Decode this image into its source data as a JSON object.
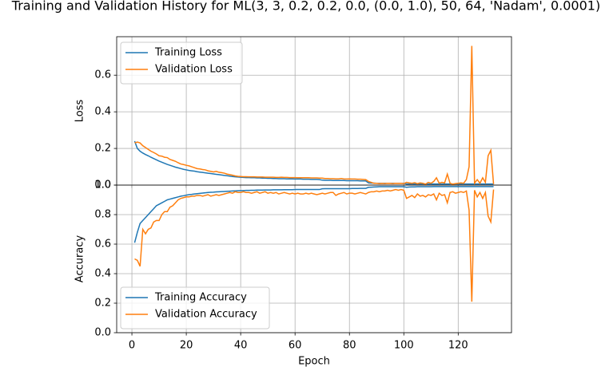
{
  "title": "Training and Validation History for ML(3, 3, 0.2, 0.2, 0.0, (0.0, 1.0), 50, 64, 'Nadam', 0.0001)",
  "chart_data": [
    {
      "type": "line",
      "ylabel": "Loss",
      "grid": true,
      "legend": "upper left",
      "x": [
        1,
        2,
        3,
        4,
        5,
        6,
        7,
        8,
        9,
        10,
        11,
        12,
        13,
        14,
        15,
        16,
        17,
        18,
        19,
        20,
        21,
        22,
        23,
        24,
        25,
        26,
        27,
        28,
        29,
        30,
        31,
        32,
        33,
        34,
        35,
        36,
        37,
        38,
        39,
        40,
        41,
        42,
        43,
        44,
        45,
        46,
        47,
        48,
        49,
        50,
        51,
        52,
        53,
        54,
        55,
        56,
        57,
        58,
        59,
        60,
        61,
        62,
        63,
        64,
        65,
        66,
        67,
        68,
        69,
        70,
        71,
        72,
        73,
        74,
        75,
        76,
        77,
        78,
        79,
        80,
        81,
        82,
        83,
        84,
        85,
        86,
        87,
        88,
        89,
        90,
        91,
        92,
        93,
        94,
        95,
        96,
        97,
        98,
        99,
        100,
        101,
        102,
        103,
        104,
        105,
        106,
        107,
        108,
        109,
        110,
        111,
        112,
        113,
        114,
        115,
        116,
        117,
        118,
        119,
        120,
        121,
        122,
        123,
        124,
        125,
        126,
        127,
        128,
        129,
        130,
        131,
        132,
        133
      ],
      "xlim": [
        -5.6,
        139.6
      ],
      "xticks": [
        0,
        20,
        40,
        60,
        80,
        100,
        120
      ],
      "ylim": [
        0,
        0.81
      ],
      "yticks": [
        {
          "value": 0,
          "label": "0.0"
        },
        0.2,
        0.4,
        0.6
      ],
      "series": [
        {
          "name": "Training Loss",
          "color": "#1f77b4",
          "values": [
            0.24,
            0.2,
            0.185,
            0.175,
            0.167,
            0.16,
            0.152,
            0.145,
            0.138,
            0.131,
            0.125,
            0.119,
            0.113,
            0.108,
            0.103,
            0.098,
            0.094,
            0.09,
            0.086,
            0.083,
            0.08,
            0.078,
            0.076,
            0.073,
            0.071,
            0.069,
            0.067,
            0.065,
            0.063,
            0.061,
            0.059,
            0.057,
            0.055,
            0.053,
            0.051,
            0.049,
            0.047,
            0.045,
            0.044,
            0.043,
            0.042,
            0.041,
            0.041,
            0.04,
            0.04,
            0.039,
            0.039,
            0.038,
            0.038,
            0.037,
            0.037,
            0.036,
            0.036,
            0.035,
            0.035,
            0.035,
            0.034,
            0.034,
            0.034,
            0.033,
            0.033,
            0.033,
            0.032,
            0.032,
            0.032,
            0.031,
            0.031,
            0.031,
            0.03,
            0.027,
            0.026,
            0.026,
            0.026,
            0.025,
            0.025,
            0.025,
            0.025,
            0.025,
            0.024,
            0.024,
            0.024,
            0.024,
            0.024,
            0.023,
            0.023,
            0.023,
            0.012,
            0.011,
            0.011,
            0.01,
            0.01,
            0.01,
            0.01,
            0.01,
            0.01,
            0.01,
            0.01,
            0.01,
            0.01,
            0.01,
            0.006,
            0.006,
            0.006,
            0.006,
            0.006,
            0.006,
            0.006,
            0.006,
            0.006,
            0.006,
            0.006,
            0.006,
            0.006,
            0.006,
            0.006,
            0.006,
            0.006,
            0.006,
            0.006,
            0.006,
            0.006,
            0.006,
            0.006,
            0.006,
            0.006,
            0.006,
            0.006,
            0.006,
            0.006,
            0.006,
            0.006,
            0.006,
            0.006
          ]
        },
        {
          "name": "Validation Loss",
          "color": "#ff7f0e",
          "values": [
            0.23,
            0.235,
            0.23,
            0.215,
            0.205,
            0.195,
            0.185,
            0.178,
            0.17,
            0.16,
            0.158,
            0.152,
            0.15,
            0.14,
            0.135,
            0.13,
            0.122,
            0.115,
            0.112,
            0.108,
            0.105,
            0.1,
            0.095,
            0.09,
            0.088,
            0.085,
            0.083,
            0.078,
            0.075,
            0.072,
            0.075,
            0.07,
            0.068,
            0.065,
            0.06,
            0.057,
            0.054,
            0.05,
            0.048,
            0.047,
            0.046,
            0.046,
            0.045,
            0.045,
            0.045,
            0.044,
            0.044,
            0.044,
            0.043,
            0.043,
            0.043,
            0.043,
            0.042,
            0.042,
            0.043,
            0.042,
            0.042,
            0.041,
            0.041,
            0.041,
            0.04,
            0.04,
            0.04,
            0.04,
            0.04,
            0.039,
            0.039,
            0.039,
            0.038,
            0.038,
            0.036,
            0.036,
            0.035,
            0.035,
            0.034,
            0.034,
            0.036,
            0.033,
            0.033,
            0.034,
            0.033,
            0.033,
            0.032,
            0.032,
            0.031,
            0.03,
            0.02,
            0.015,
            0.01,
            0.01,
            0.008,
            0.009,
            0.008,
            0.01,
            0.009,
            0.008,
            0.01,
            0.009,
            0.01,
            0.008,
            0.015,
            0.012,
            0.01,
            0.013,
            0.008,
            0.012,
            0.01,
            0.005,
            0.015,
            0.01,
            0.02,
            0.04,
            0.01,
            0.015,
            0.012,
            0.06,
            0.01,
            0.005,
            0.008,
            0.01,
            0.012,
            0.01,
            0.03,
            0.1,
            0.76,
            0.01,
            0.03,
            0.01,
            0.04,
            0.015,
            0.16,
            0.19,
            0.005
          ]
        }
      ]
    },
    {
      "type": "line",
      "ylabel": "Accuracy",
      "xlabel": "Epoch",
      "grid": true,
      "legend": "lower left",
      "x": [
        1,
        2,
        3,
        4,
        5,
        6,
        7,
        8,
        9,
        10,
        11,
        12,
        13,
        14,
        15,
        16,
        17,
        18,
        19,
        20,
        21,
        22,
        23,
        24,
        25,
        26,
        27,
        28,
        29,
        30,
        31,
        32,
        33,
        34,
        35,
        36,
        37,
        38,
        39,
        40,
        41,
        42,
        43,
        44,
        45,
        46,
        47,
        48,
        49,
        50,
        51,
        52,
        53,
        54,
        55,
        56,
        57,
        58,
        59,
        60,
        61,
        62,
        63,
        64,
        65,
        66,
        67,
        68,
        69,
        70,
        71,
        72,
        73,
        74,
        75,
        76,
        77,
        78,
        79,
        80,
        81,
        82,
        83,
        84,
        85,
        86,
        87,
        88,
        89,
        90,
        91,
        92,
        93,
        94,
        95,
        96,
        97,
        98,
        99,
        100,
        101,
        102,
        103,
        104,
        105,
        106,
        107,
        108,
        109,
        110,
        111,
        112,
        113,
        114,
        115,
        116,
        117,
        118,
        119,
        120,
        121,
        122,
        123,
        124,
        125,
        126,
        127,
        128,
        129,
        130,
        131,
        132,
        133
      ],
      "xlim": [
        -5.6,
        139.6
      ],
      "xticks": [
        0,
        20,
        40,
        60,
        80,
        100,
        120
      ],
      "ylim": [
        0,
        1.0
      ],
      "yticks": [
        {
          "value": 0,
          "label": "0.0"
        },
        0.2,
        0.4,
        0.6,
        0.8,
        {
          "value": 1.0,
          "label": "1.0"
        }
      ],
      "series": [
        {
          "name": "Training Accuracy",
          "color": "#1f77b4",
          "values": [
            0.61,
            0.68,
            0.74,
            0.76,
            0.78,
            0.8,
            0.82,
            0.84,
            0.86,
            0.87,
            0.88,
            0.89,
            0.9,
            0.905,
            0.91,
            0.915,
            0.92,
            0.925,
            0.928,
            0.932,
            0.935,
            0.937,
            0.94,
            0.942,
            0.944,
            0.946,
            0.948,
            0.95,
            0.951,
            0.952,
            0.954,
            0.955,
            0.956,
            0.957,
            0.958,
            0.959,
            0.96,
            0.961,
            0.962,
            0.963,
            0.963,
            0.964,
            0.964,
            0.965,
            0.965,
            0.966,
            0.966,
            0.966,
            0.967,
            0.967,
            0.967,
            0.968,
            0.968,
            0.968,
            0.968,
            0.969,
            0.969,
            0.969,
            0.969,
            0.97,
            0.97,
            0.97,
            0.97,
            0.97,
            0.97,
            0.97,
            0.97,
            0.97,
            0.97,
            0.975,
            0.976,
            0.976,
            0.976,
            0.976,
            0.976,
            0.976,
            0.976,
            0.976,
            0.976,
            0.976,
            0.977,
            0.977,
            0.977,
            0.978,
            0.978,
            0.978,
            0.985,
            0.986,
            0.987,
            0.988,
            0.989,
            0.989,
            0.989,
            0.989,
            0.989,
            0.989,
            0.989,
            0.989,
            0.989,
            0.989,
            0.985,
            0.987,
            0.988,
            0.988,
            0.989,
            0.989,
            0.989,
            0.989,
            0.989,
            0.989,
            0.99,
            0.99,
            0.99,
            0.99,
            0.99,
            0.99,
            0.99,
            0.99,
            0.99,
            0.99,
            0.99,
            0.99,
            0.99,
            0.99,
            0.99,
            0.99,
            0.99,
            0.99,
            0.99,
            0.99,
            0.99,
            0.99,
            0.99
          ]
        },
        {
          "name": "Validation Accuracy",
          "color": "#ff7f0e",
          "values": [
            0.5,
            0.49,
            0.45,
            0.7,
            0.67,
            0.7,
            0.71,
            0.75,
            0.76,
            0.76,
            0.8,
            0.82,
            0.82,
            0.85,
            0.86,
            0.88,
            0.9,
            0.91,
            0.915,
            0.92,
            0.92,
            0.925,
            0.925,
            0.93,
            0.93,
            0.925,
            0.93,
            0.935,
            0.925,
            0.93,
            0.935,
            0.93,
            0.935,
            0.94,
            0.945,
            0.95,
            0.945,
            0.955,
            0.95,
            0.95,
            0.955,
            0.95,
            0.95,
            0.945,
            0.95,
            0.955,
            0.945,
            0.95,
            0.955,
            0.945,
            0.95,
            0.945,
            0.95,
            0.94,
            0.945,
            0.95,
            0.945,
            0.94,
            0.945,
            0.94,
            0.945,
            0.94,
            0.94,
            0.945,
            0.94,
            0.945,
            0.94,
            0.935,
            0.94,
            0.945,
            0.94,
            0.945,
            0.95,
            0.95,
            0.93,
            0.94,
            0.945,
            0.95,
            0.94,
            0.945,
            0.945,
            0.94,
            0.945,
            0.95,
            0.945,
            0.94,
            0.95,
            0.955,
            0.955,
            0.96,
            0.955,
            0.96,
            0.96,
            0.965,
            0.96,
            0.965,
            0.97,
            0.965,
            0.97,
            0.965,
            0.91,
            0.92,
            0.93,
            0.915,
            0.94,
            0.925,
            0.93,
            0.92,
            0.935,
            0.93,
            0.94,
            0.9,
            0.945,
            0.93,
            0.935,
            0.88,
            0.95,
            0.955,
            0.945,
            0.95,
            0.955,
            0.95,
            0.96,
            0.83,
            0.21,
            0.965,
            0.92,
            0.95,
            0.91,
            0.95,
            0.79,
            0.75,
            0.97
          ]
        }
      ]
    }
  ]
}
